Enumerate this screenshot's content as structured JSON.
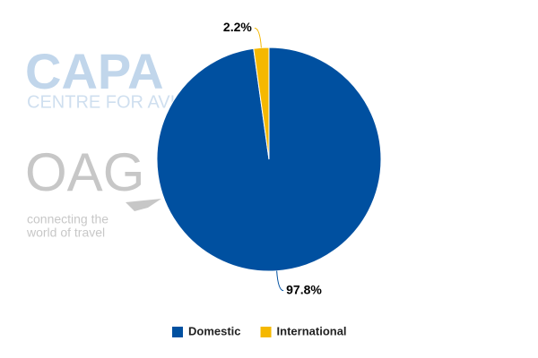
{
  "chart_data": {
    "type": "pie",
    "categories": [
      "Domestic",
      "International"
    ],
    "values": [
      97.8,
      2.2
    ],
    "value_labels": [
      "97.8%",
      "2.2%"
    ],
    "colors": [
      "#0050a0",
      "#f5b800"
    ],
    "legend": "bottom",
    "watermarks": [
      "CAPA",
      "CENTRE FOR AVIATION",
      "OAG",
      "connecting the",
      "world of travel"
    ]
  }
}
